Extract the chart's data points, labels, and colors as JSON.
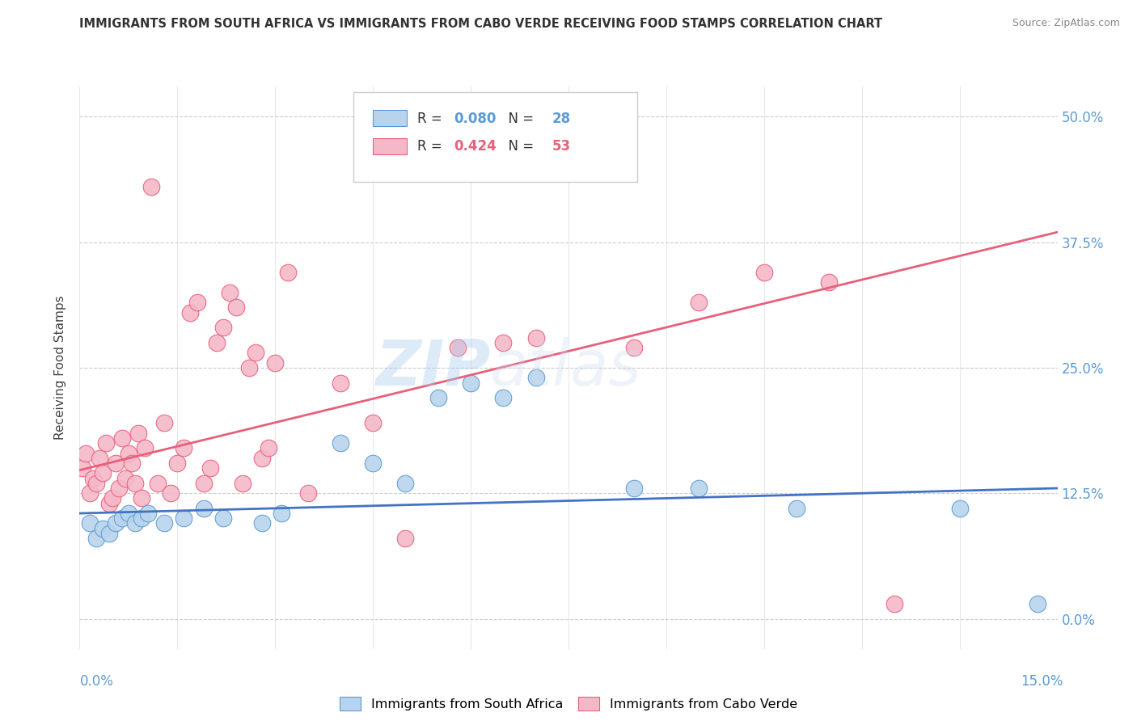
{
  "title": "IMMIGRANTS FROM SOUTH AFRICA VS IMMIGRANTS FROM CABO VERDE RECEIVING FOOD STAMPS CORRELATION CHART",
  "source": "Source: ZipAtlas.com",
  "ylabel": "Receiving Food Stamps",
  "ytick_values": [
    0.0,
    12.5,
    25.0,
    37.5,
    50.0
  ],
  "xlim": [
    0.0,
    15.0
  ],
  "ylim": [
    -3.0,
    53.0
  ],
  "label_blue": "Immigrants from South Africa",
  "label_pink": "Immigrants from Cabo Verde",
  "blue_fill": "#b8d4ec",
  "pink_fill": "#f5b8c8",
  "blue_edge": "#5b9bd5",
  "pink_edge": "#e8607a",
  "blue_line": "#4472c4",
  "pink_line": "#e8607a",
  "watermark_zip": "ZIP",
  "watermark_atlas": "atlas",
  "blue_x": [
    0.15,
    0.25,
    0.35,
    0.45,
    0.55,
    0.65,
    0.75,
    0.85,
    0.95,
    1.05,
    1.3,
    1.6,
    1.9,
    2.2,
    2.8,
    3.1,
    4.0,
    4.5,
    5.0,
    5.5,
    6.0,
    6.5,
    7.0,
    8.5,
    9.5,
    11.0,
    13.5,
    14.7
  ],
  "blue_y": [
    9.5,
    8.0,
    9.0,
    8.5,
    9.5,
    10.0,
    10.5,
    9.5,
    10.0,
    10.5,
    9.5,
    10.0,
    11.0,
    10.0,
    9.5,
    10.5,
    17.5,
    15.5,
    13.5,
    22.0,
    23.5,
    22.0,
    24.0,
    13.0,
    13.0,
    11.0,
    11.0,
    1.5
  ],
  "pink_x": [
    0.05,
    0.1,
    0.15,
    0.2,
    0.25,
    0.3,
    0.35,
    0.4,
    0.45,
    0.5,
    0.55,
    0.6,
    0.65,
    0.7,
    0.75,
    0.8,
    0.85,
    0.9,
    0.95,
    1.0,
    1.1,
    1.2,
    1.3,
    1.4,
    1.5,
    1.6,
    1.7,
    1.8,
    1.9,
    2.0,
    2.1,
    2.2,
    2.3,
    2.4,
    2.5,
    2.6,
    2.7,
    2.8,
    2.9,
    3.0,
    3.2,
    3.5,
    4.0,
    4.5,
    5.0,
    5.8,
    6.5,
    7.0,
    8.5,
    9.5,
    10.5,
    11.5,
    12.5
  ],
  "pink_y": [
    15.0,
    16.5,
    12.5,
    14.0,
    13.5,
    16.0,
    14.5,
    17.5,
    11.5,
    12.0,
    15.5,
    13.0,
    18.0,
    14.0,
    16.5,
    15.5,
    13.5,
    18.5,
    12.0,
    17.0,
    43.0,
    13.5,
    19.5,
    12.5,
    15.5,
    17.0,
    30.5,
    31.5,
    13.5,
    15.0,
    27.5,
    29.0,
    32.5,
    31.0,
    13.5,
    25.0,
    26.5,
    16.0,
    17.0,
    25.5,
    34.5,
    12.5,
    23.5,
    19.5,
    8.0,
    27.0,
    27.5,
    28.0,
    27.0,
    31.5,
    34.5,
    33.5,
    1.5
  ],
  "pink_line_x0": 0.0,
  "pink_line_y0": 14.8,
  "pink_line_x1": 15.0,
  "pink_line_y1": 38.5,
  "blue_line_x0": 0.0,
  "blue_line_y0": 10.5,
  "blue_line_x1": 15.0,
  "blue_line_y1": 13.0
}
